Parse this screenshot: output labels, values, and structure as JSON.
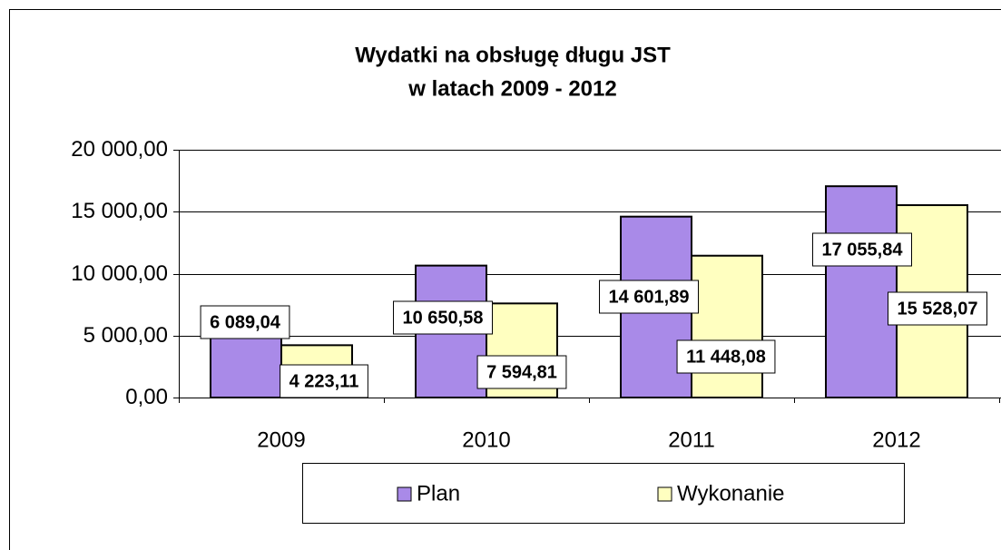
{
  "chart_data": {
    "type": "bar",
    "title": [
      "Wydatki na obsługę długu JST",
      "w latach 2009 - 2012"
    ],
    "categories": [
      "2009",
      "2010",
      "2011",
      "2012"
    ],
    "series": [
      {
        "name": "Plan",
        "color": "#a98ae8",
        "values": [
          6089.04,
          10650.58,
          14601.89,
          17055.84
        ],
        "value_labels": [
          "6 089,04",
          "10 650,58",
          "14 601,89",
          "17 055,84"
        ]
      },
      {
        "name": "Wykonanie",
        "color": "#ffffc0",
        "values": [
          4223.11,
          7594.81,
          11448.08,
          15528.07
        ],
        "value_labels": [
          "4 223,11",
          "7 594,81",
          "11 448,08",
          "15 528,07"
        ]
      }
    ],
    "ylim": [
      0,
      20000
    ],
    "yticks": [
      {
        "value": 0,
        "label": "0,00"
      },
      {
        "value": 5000,
        "label": "5 000,00"
      },
      {
        "value": 10000,
        "label": "10 000,00"
      },
      {
        "value": 15000,
        "label": "15 000,00"
      },
      {
        "value": 20000,
        "label": "20 000,00"
      }
    ],
    "grid": true,
    "legend": "bottom"
  }
}
